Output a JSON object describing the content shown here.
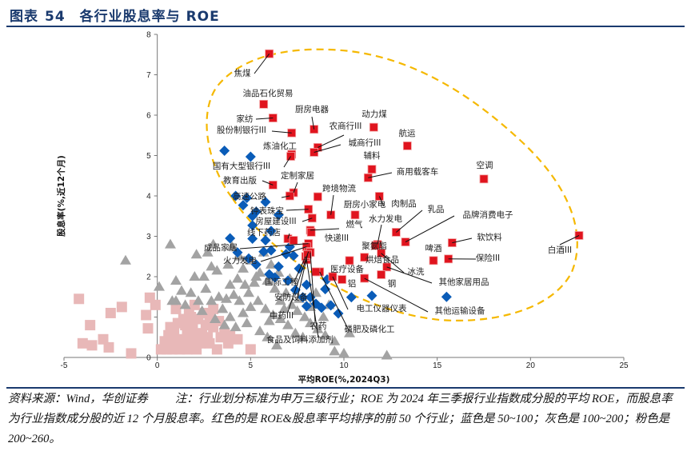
{
  "header": {
    "prefix": "图表",
    "number": "54",
    "title": "各行业股息率与 ROE"
  },
  "footer": {
    "source": "资料来源：Wind，华创证券",
    "note": "注：行业划分标准为申万三级行业；ROE 为 2024 年三季报行业指数成分股的平均 ROE，而股息率为行业指数成分股的近 12 个月股息率。红色的是 ROE&股息率平均排序的前 50 个行业；蓝色是 50~100；灰色是 100~200；粉色是 200~260。"
  },
  "chart_data": {
    "type": "scatter",
    "xlabel": "平均ROE(%,2024Q3)",
    "ylabel": "股息率(%,近12个月)",
    "xlim": [
      -5,
      25
    ],
    "ylim": [
      0,
      8
    ],
    "xticks": [
      "-5",
      "0",
      "5",
      "10",
      "15",
      "20",
      "25"
    ],
    "yticks": [
      "0",
      "1",
      "2",
      "3",
      "4",
      "5",
      "6",
      "7",
      "8"
    ],
    "grid": false,
    "colors": {
      "red": "#e0141e",
      "blue": "#0a5cb8",
      "gray": "#a3a3a3",
      "pink": "#e8b8b8",
      "highlight": "#f5b800"
    },
    "series": [
      {
        "group": "top50",
        "color": "red",
        "marker": "square",
        "points": [
          {
            "x": 6.0,
            "y": 7.52,
            "label": "焦煤"
          },
          {
            "x": 5.7,
            "y": 6.27,
            "label": "油品石化贸易"
          },
          {
            "x": 6.2,
            "y": 5.93,
            "label": "家纺"
          },
          {
            "x": 7.2,
            "y": 5.56,
            "label": "股份制银行III"
          },
          {
            "x": 8.4,
            "y": 5.65,
            "label": "厨房电器"
          },
          {
            "x": 8.6,
            "y": 5.2,
            "label": "农商行III"
          },
          {
            "x": 8.4,
            "y": 5.08,
            "label": "城商行III"
          },
          {
            "x": 11.6,
            "y": 5.7,
            "label": "动力煤"
          },
          {
            "x": 13.4,
            "y": 5.24,
            "label": "航运"
          },
          {
            "x": 7.2,
            "y": 5.03,
            "label": "炼油化工"
          },
          {
            "x": 7.15,
            "y": 4.98,
            "label": "国有大型银行III"
          },
          {
            "x": 11.5,
            "y": 4.66,
            "label": "辅料"
          },
          {
            "x": 11.3,
            "y": 4.45,
            "label": "商用载客车"
          },
          {
            "x": 17.5,
            "y": 4.42,
            "label": "空调"
          },
          {
            "x": 6.2,
            "y": 4.27,
            "label": "教育出版"
          },
          {
            "x": 7.3,
            "y": 4.08,
            "label": "定制家居"
          },
          {
            "x": 7.1,
            "y": 4.0,
            "label": "高速公路"
          },
          {
            "x": 9.3,
            "y": 3.53,
            "label": "跨境物流"
          },
          {
            "x": 8.6,
            "y": 3.98
          },
          {
            "x": 8.1,
            "y": 3.67,
            "label": "钟表珠宝"
          },
          {
            "x": 11.9,
            "y": 3.99,
            "label": "肉制品"
          },
          {
            "x": 10.6,
            "y": 3.53,
            "label": "厨房小家电"
          },
          {
            "x": 12.8,
            "y": 3.1,
            "label": "乳品"
          },
          {
            "x": 13.3,
            "y": 2.86,
            "label": "品牌消费电子"
          },
          {
            "x": 11.8,
            "y": 2.8,
            "label": "水力发电"
          },
          {
            "x": 8.3,
            "y": 3.45,
            "label": "房屋建设III"
          },
          {
            "x": 8.2,
            "y": 3.15,
            "label": "燃气"
          },
          {
            "x": 8.25,
            "y": 3.1,
            "label": "快递III"
          },
          {
            "x": 7.0,
            "y": 2.94,
            "label": "线下药店"
          },
          {
            "x": 7.3,
            "y": 2.9
          },
          {
            "x": 8.1,
            "y": 2.82,
            "label": "成品家居"
          },
          {
            "x": 8.0,
            "y": 2.74,
            "label": "火力发电"
          },
          {
            "x": 11.7,
            "y": 2.77,
            "label": "聚氨酯"
          },
          {
            "x": 15.8,
            "y": 2.84,
            "label": "软饮料"
          },
          {
            "x": 22.6,
            "y": 3.02,
            "label": "白酒III"
          },
          {
            "x": 14.8,
            "y": 2.4,
            "label": "啤酒"
          },
          {
            "x": 15.6,
            "y": 2.44,
            "label": "保险III"
          },
          {
            "x": 11.1,
            "y": 2.48,
            "label": "烘焙食品"
          },
          {
            "x": 12.0,
            "y": 2.58,
            "label": "冰洗"
          },
          {
            "x": 12.3,
            "y": 2.24,
            "label": "其他家居用品"
          },
          {
            "x": 12.0,
            "y": 2.05
          },
          {
            "x": 10.3,
            "y": 2.4,
            "label": "医疗设备"
          },
          {
            "x": 11.1,
            "y": 1.96,
            "label": "其他运输设备"
          },
          {
            "x": 9.4,
            "y": 2.0,
            "label": "电工仪器仪表"
          },
          {
            "x": 8.7,
            "y": 2.12,
            "label": "磷肥及磷化工"
          },
          {
            "x": 8.5,
            "y": 2.12
          },
          {
            "x": 9.9,
            "y": 1.93
          },
          {
            "x": 8.1,
            "y": 2.62,
            "label": "中药III"
          },
          {
            "x": 8.2,
            "y": 2.6,
            "label": "农药"
          },
          {
            "x": 8.0,
            "y": 2.42,
            "label": "食品及饲料添加剂"
          },
          {
            "x": 7.95,
            "y": 2.5,
            "label": "国际工程"
          },
          {
            "x": 8.05,
            "y": 2.55,
            "label": "安防设备"
          }
        ]
      },
      {
        "group": "50~100",
        "color": "blue",
        "marker": "diamond",
        "points": [
          {
            "x": 3.6,
            "y": 5.12
          },
          {
            "x": 5.0,
            "y": 4.97
          },
          {
            "x": 4.2,
            "y": 4.0
          },
          {
            "x": 4.8,
            "y": 3.95
          },
          {
            "x": 4.6,
            "y": 3.77
          },
          {
            "x": 5.3,
            "y": 3.61
          },
          {
            "x": 5.1,
            "y": 3.5
          },
          {
            "x": 5.1,
            "y": 3.27
          },
          {
            "x": 3.9,
            "y": 2.95
          },
          {
            "x": 5.1,
            "y": 2.94
          },
          {
            "x": 4.3,
            "y": 2.6
          },
          {
            "x": 4.9,
            "y": 2.45
          },
          {
            "x": 5.3,
            "y": 2.3
          },
          {
            "x": 5.8,
            "y": 2.9
          },
          {
            "x": 5.7,
            "y": 2.62
          },
          {
            "x": 6.1,
            "y": 2.65
          },
          {
            "x": 6.5,
            "y": 2.25
          },
          {
            "x": 7.0,
            "y": 1.9
          },
          {
            "x": 6.0,
            "y": 2.06
          },
          {
            "x": 6.3,
            "y": 1.98
          },
          {
            "x": 6.9,
            "y": 2.56
          },
          {
            "x": 7.3,
            "y": 2.52
          },
          {
            "x": 7.6,
            "y": 2.2
          },
          {
            "x": 7.4,
            "y": 1.67
          },
          {
            "x": 7.8,
            "y": 1.49
          },
          {
            "x": 8.0,
            "y": 1.8
          },
          {
            "x": 8.2,
            "y": 1.49
          },
          {
            "x": 8.5,
            "y": 1.33
          },
          {
            "x": 8.0,
            "y": 1.27
          },
          {
            "x": 8.8,
            "y": 1.23
          },
          {
            "x": 9.1,
            "y": 1.93
          },
          {
            "x": 9.0,
            "y": 1.69
          },
          {
            "x": 9.3,
            "y": 1.29
          },
          {
            "x": 9.7,
            "y": 1.09
          },
          {
            "x": 10.4,
            "y": 1.49,
            "label": "铝"
          },
          {
            "x": 11.5,
            "y": 1.53,
            "label": "钢"
          },
          {
            "x": 15.5,
            "y": 1.5
          },
          {
            "x": 5.8,
            "y": 3.85
          },
          {
            "x": 6.5,
            "y": 3.53
          },
          {
            "x": 6.1,
            "y": 3.13
          },
          {
            "x": 7.1,
            "y": 2.74
          }
        ]
      },
      {
        "group": "100~200",
        "color": "gray",
        "marker": "triangle",
        "points": [
          [
            -1.7,
            2.4
          ],
          [
            0.7,
            2.8
          ],
          [
            0.1,
            1.75
          ],
          [
            2.1,
            2.55
          ],
          [
            2.0,
            2.0
          ],
          [
            2.5,
            2.0
          ],
          [
            2.9,
            2.25
          ],
          [
            3.2,
            2.15
          ],
          [
            3.8,
            2.3
          ],
          [
            4.3,
            1.95
          ],
          [
            4.6,
            2.2
          ],
          [
            3.3,
            1.5
          ],
          [
            3.7,
            1.45
          ],
          [
            4.1,
            1.55
          ],
          [
            4.4,
            1.4
          ],
          [
            4.9,
            1.6
          ],
          [
            5.2,
            1.85
          ],
          [
            5.5,
            2.1
          ],
          [
            5.9,
            1.9
          ],
          [
            6.3,
            1.7
          ],
          [
            6.6,
            1.4
          ],
          [
            6.9,
            1.6
          ],
          [
            7.2,
            1.3
          ],
          [
            7.5,
            1.15
          ],
          [
            7.9,
            1.0
          ],
          [
            8.2,
            0.85
          ],
          [
            8.6,
            0.7
          ],
          [
            9.0,
            0.55
          ],
          [
            9.5,
            0.4
          ],
          [
            10.3,
            0.6
          ],
          [
            12.3,
            0.05
          ],
          [
            9.5,
            0.15
          ],
          [
            4.0,
            2.75
          ],
          [
            5.0,
            2.4
          ],
          [
            5.7,
            2.6
          ],
          [
            6.1,
            2.3
          ],
          [
            2.6,
            1.7
          ],
          [
            2.9,
            1.4
          ],
          [
            3.5,
            1.2
          ],
          [
            3.9,
            1.0
          ],
          [
            4.6,
            1.1
          ],
          [
            5.0,
            1.25
          ],
          [
            5.4,
            1.4
          ],
          [
            5.8,
            1.2
          ],
          [
            6.2,
            1.05
          ],
          [
            6.6,
            0.95
          ],
          [
            7.0,
            0.8
          ],
          [
            7.4,
            0.6
          ],
          [
            7.8,
            0.5
          ],
          [
            6.4,
            0.3
          ],
          [
            5.5,
            0.65
          ],
          [
            4.8,
            0.85
          ],
          [
            4.2,
            0.75
          ],
          [
            3.6,
            0.8
          ],
          [
            3.1,
            0.95
          ],
          [
            2.4,
            1.15
          ],
          [
            1.8,
            1.6
          ],
          [
            1.3,
            1.65
          ],
          [
            1.0,
            1.4
          ],
          [
            1.5,
            1.3
          ],
          [
            2.2,
            1.4
          ],
          [
            0.8,
            1.4
          ],
          [
            5.9,
            0.5
          ],
          [
            6.8,
            1.2
          ],
          [
            7.6,
            1.45
          ],
          [
            8.2,
            1.25
          ],
          [
            8.5,
            1.6
          ],
          [
            7.1,
            1.95
          ],
          [
            6.5,
            2.1
          ],
          [
            4.4,
            2.5
          ],
          [
            3.0,
            2.8
          ],
          [
            2.7,
            2.6
          ],
          [
            5.3,
            2.0
          ],
          [
            3.9,
            1.8
          ],
          [
            4.7,
            1.8
          ],
          [
            6.0,
            0.9
          ],
          [
            10.0,
            0.1
          ],
          [
            8.9,
            1.0
          ],
          [
            9.2,
            1.3
          ],
          [
            1.0,
            1.9
          ]
        ]
      },
      {
        "group": "200~260",
        "color": "pink",
        "marker": "square",
        "points": [
          [
            -4.2,
            1.45
          ],
          [
            -3.6,
            0.8
          ],
          [
            -2.5,
            1.1
          ],
          [
            -1.9,
            1.25
          ],
          [
            -4.0,
            0.35
          ],
          [
            -3.5,
            0.3
          ],
          [
            -2.9,
            0.45
          ],
          [
            -2.6,
            0.25
          ],
          [
            -1.4,
            0.1
          ],
          [
            -0.4,
            1.48
          ],
          [
            -0.1,
            1.3
          ],
          [
            -0.6,
            1.05
          ],
          [
            -0.5,
            0.72
          ],
          [
            0.2,
            0.2
          ],
          [
            0.5,
            0.2
          ],
          [
            0.8,
            0.2
          ],
          [
            1.2,
            0.2
          ],
          [
            1.6,
            0.2
          ],
          [
            2.1,
            0.2
          ],
          [
            0.6,
            0.55
          ],
          [
            0.9,
            0.6
          ],
          [
            1.3,
            0.45
          ],
          [
            1.8,
            0.4
          ],
          [
            2.3,
            0.35
          ],
          [
            1.1,
            0.85
          ],
          [
            1.5,
            0.8
          ],
          [
            1.9,
            0.75
          ],
          [
            2.4,
            0.6
          ],
          [
            3.2,
            0.2
          ],
          [
            2.8,
            0.35
          ],
          [
            3.4,
            0.5
          ],
          [
            1.4,
            0.95
          ],
          [
            1.8,
            1.0
          ],
          [
            2.2,
            0.95
          ],
          [
            2.5,
            1.1
          ],
          [
            2.8,
            1.05
          ],
          [
            3.0,
            0.75
          ],
          [
            3.6,
            0.6
          ],
          [
            3.0,
            1.2
          ],
          [
            1.7,
            1.15
          ],
          [
            1.0,
            1.2
          ],
          [
            0.7,
            0.75
          ],
          [
            0.4,
            0.4
          ],
          [
            2.6,
            0.8
          ],
          [
            3.9,
            0.55
          ],
          [
            4.3,
            0.45
          ],
          [
            5.0,
            0.2
          ],
          [
            1.2,
            0.35
          ],
          [
            2.0,
            0.55
          ],
          [
            2.7,
            0.5
          ],
          [
            3.3,
            0.9
          ],
          [
            3.8,
            0.35
          ],
          [
            2.0,
            1.3
          ],
          [
            0.9,
            0.35
          ],
          [
            1.6,
            0.65
          ]
        ]
      }
    ]
  }
}
